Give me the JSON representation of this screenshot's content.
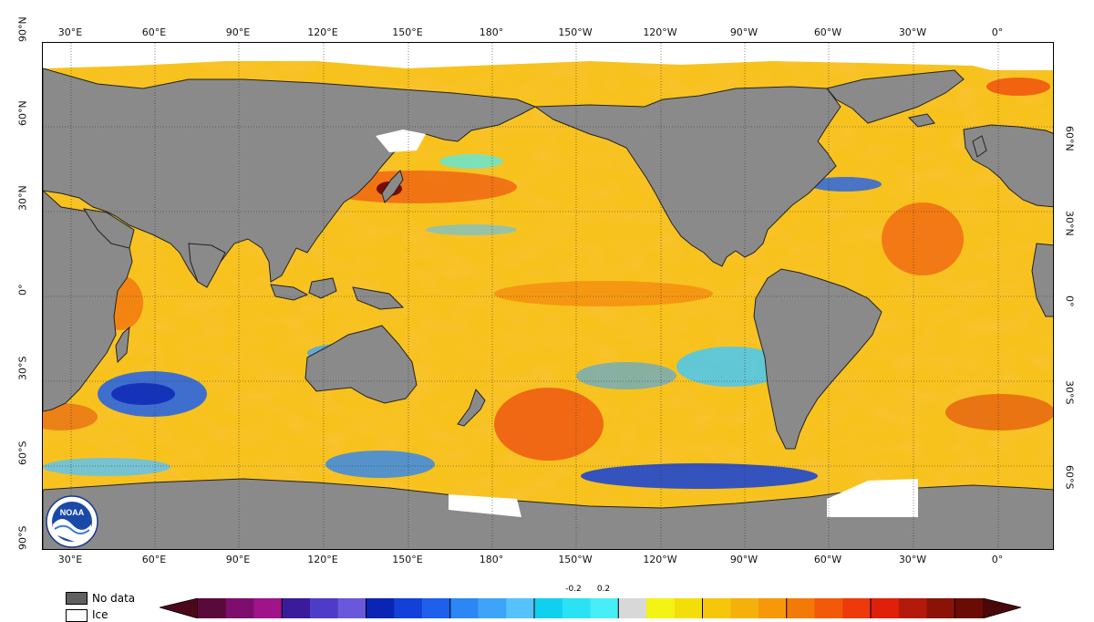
{
  "map": {
    "type": "sea surface temperature anomaly map",
    "projection": "equirectangular",
    "longitude_ticks_top": [
      "30°E",
      "60°E",
      "90°E",
      "120°E",
      "150°E",
      "180°",
      "150°W",
      "120°W",
      "90°W",
      "60°W",
      "30°W",
      "0°"
    ],
    "longitude_ticks_bottom": [
      "30°E",
      "60°E",
      "90°E",
      "120°E",
      "150°E",
      "180°",
      "150°W",
      "120°W",
      "90°W",
      "60°W",
      "30°W",
      "0°"
    ],
    "latitude_ticks_left": [
      "90°N",
      "60°N",
      "30°N",
      "0°",
      "30°S",
      "60°S",
      "90°S"
    ],
    "latitude_ticks_right": [
      "60°N",
      "30°N",
      "0°",
      "30°S",
      "60°S"
    ],
    "colors": {
      "land": "#8a8a8a",
      "ice": "#ffffff",
      "ocean_base": "#f7c21c"
    }
  },
  "legend": {
    "no_data_label": "No data",
    "ice_label": "Ice"
  },
  "colorbar": {
    "tick_labels": [
      "-0.2",
      "0.2"
    ],
    "colors": [
      "#5a0a3a",
      "#7e0e6e",
      "#a0148a",
      "#3a1c9a",
      "#4e3cc8",
      "#6a58dc",
      "#0a24b4",
      "#1240d8",
      "#1e60ec",
      "#2c86f4",
      "#3ea4f8",
      "#56c2fc",
      "#10d0f0",
      "#2ae2f4",
      "#48eef6",
      "#d8d8d8",
      "#f4f414",
      "#f4de0a",
      "#f6c60a",
      "#f6b00a",
      "#f69808",
      "#f47a08",
      "#f25a08",
      "#ee3a0a",
      "#e02008",
      "#b41a0a",
      "#8a1206",
      "#6a0c04"
    ]
  },
  "logo": {
    "text": "NOAA",
    "icon": "noaa-logo-icon"
  }
}
